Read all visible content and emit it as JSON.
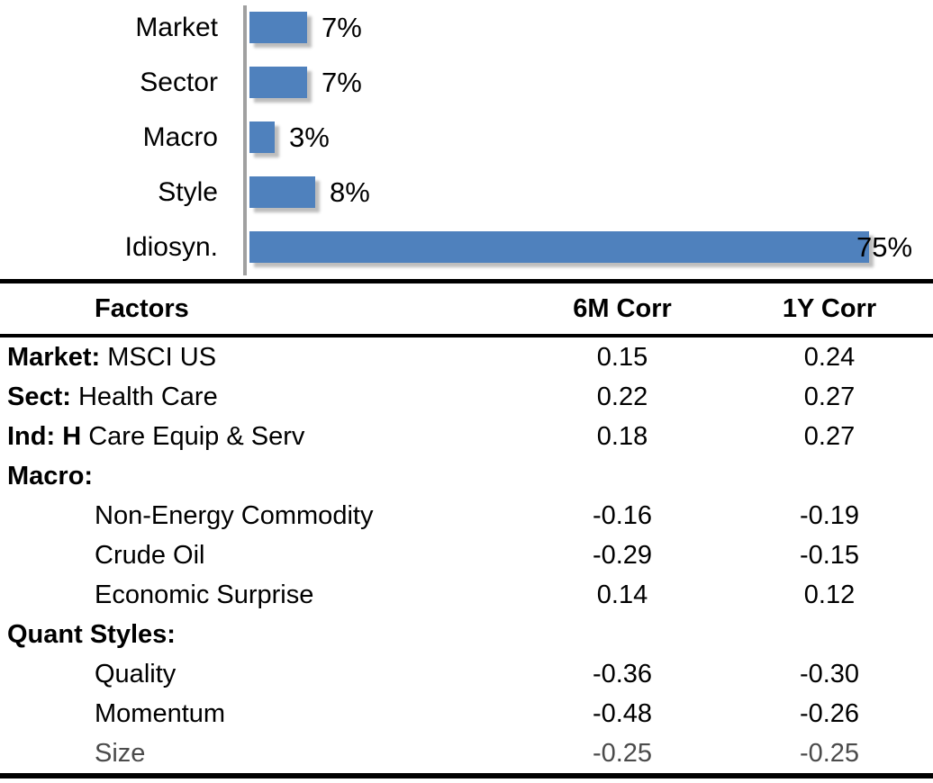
{
  "chart_data": {
    "type": "bar",
    "orientation": "horizontal",
    "title": "",
    "xlabel": "",
    "ylabel": "",
    "categories": [
      "Market",
      "Sector",
      "Macro",
      "Style",
      "Idiosyn."
    ],
    "values": [
      7,
      7,
      3,
      8,
      75
    ],
    "value_labels": [
      "7%",
      "7%",
      "3%",
      "8%",
      "75%"
    ],
    "xlim": [
      0,
      82
    ],
    "grid": false,
    "legend": false,
    "bar_color": "#4f81bd",
    "axis_color": "#a0a0a0"
  },
  "table": {
    "headers": [
      "Factors",
      "6M Corr",
      "1Y Corr"
    ],
    "rows": [
      {
        "prefix": "Market:",
        "name": " MSCI US",
        "indent": false,
        "corr_6m": "0.15",
        "corr_1y": "0.24",
        "muted": false
      },
      {
        "prefix": "Sect:",
        "name": " Health Care",
        "indent": false,
        "corr_6m": "0.22",
        "corr_1y": "0.27",
        "muted": false
      },
      {
        "prefix": "Ind: H",
        "name": " Care Equip & Serv",
        "indent": false,
        "corr_6m": "0.18",
        "corr_1y": "0.27",
        "muted": false
      },
      {
        "prefix": "Macro:",
        "name": "",
        "indent": false,
        "corr_6m": "",
        "corr_1y": "",
        "muted": false
      },
      {
        "prefix": "",
        "name": "Non-Energy Commodity",
        "indent": true,
        "corr_6m": "-0.16",
        "corr_1y": "-0.19",
        "muted": false
      },
      {
        "prefix": "",
        "name": "Crude Oil",
        "indent": true,
        "corr_6m": "-0.29",
        "corr_1y": "-0.15",
        "muted": false
      },
      {
        "prefix": "",
        "name": "Economic Surprise",
        "indent": true,
        "corr_6m": "0.14",
        "corr_1y": "0.12",
        "muted": false
      },
      {
        "prefix": "Quant Styles:",
        "name": "",
        "indent": false,
        "corr_6m": "",
        "corr_1y": "",
        "muted": false
      },
      {
        "prefix": "",
        "name": "Quality",
        "indent": true,
        "corr_6m": "-0.36",
        "corr_1y": "-0.30",
        "muted": false
      },
      {
        "prefix": "",
        "name": "Momentum",
        "indent": true,
        "corr_6m": "-0.48",
        "corr_1y": "-0.26",
        "muted": false
      },
      {
        "prefix": "",
        "name": "Size",
        "indent": true,
        "corr_6m": "-0.25",
        "corr_1y": "-0.25",
        "muted": true
      }
    ]
  }
}
